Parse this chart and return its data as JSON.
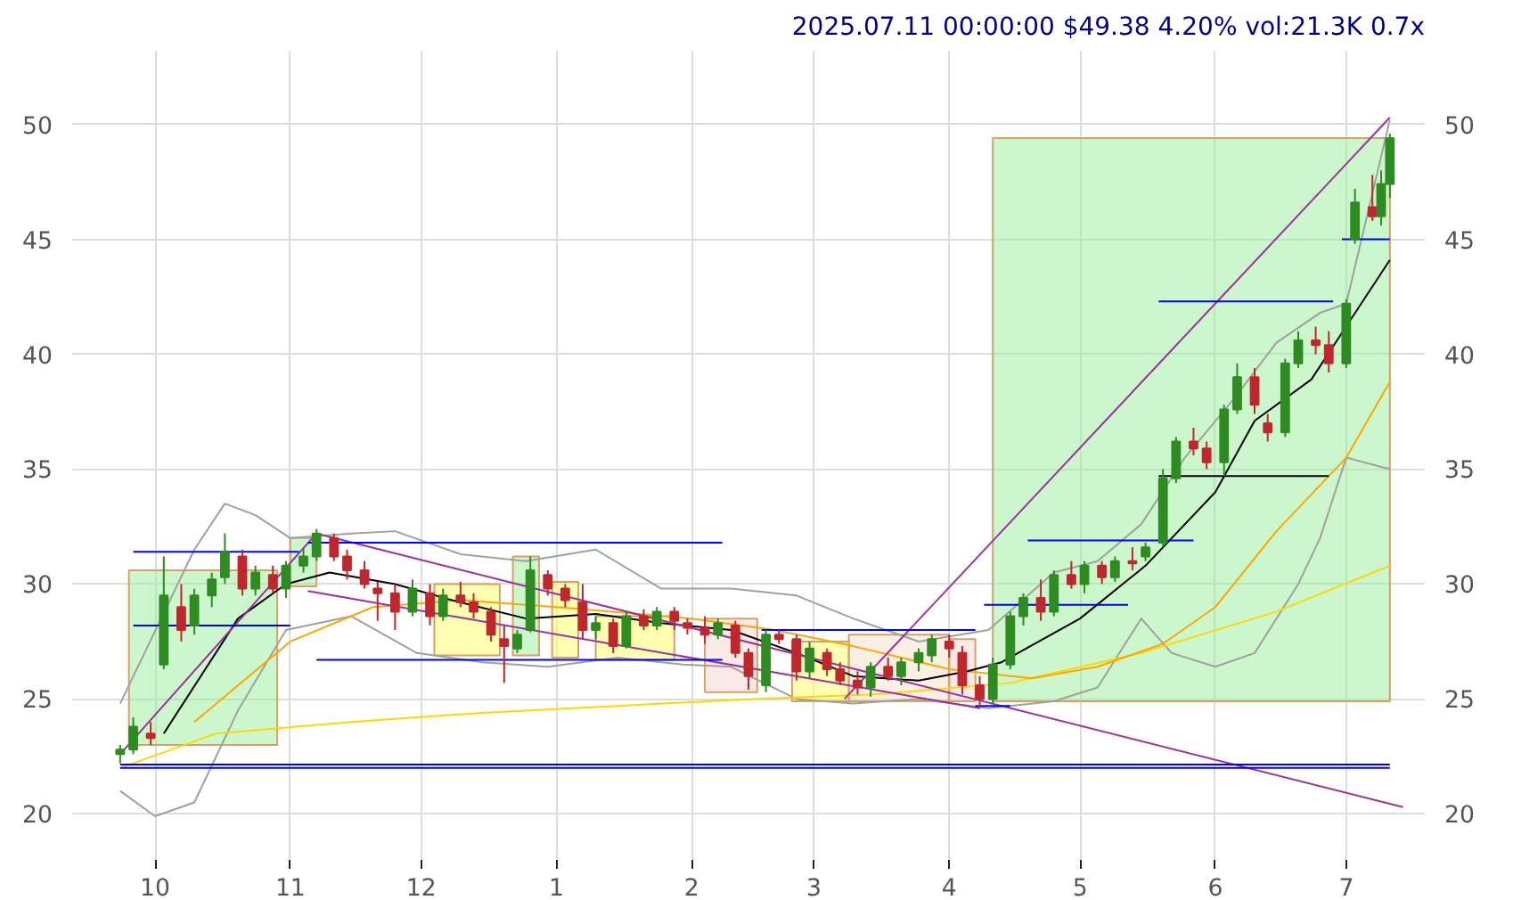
{
  "chart_data": {
    "type": "candlestick",
    "title": "2025.07.11 00:00:00 $49.38 4.20% vol:21.3K 0.7x",
    "x": [
      "2024-09-23",
      "2024-09-26",
      "2024-09-30",
      "2024-10-03",
      "2024-10-07",
      "2024-10-10",
      "2024-10-14",
      "2024-10-17",
      "2024-10-21",
      "2024-10-24",
      "2024-10-28",
      "2024-10-31",
      "2024-11-04",
      "2024-11-07",
      "2024-11-11",
      "2024-11-14",
      "2024-11-18",
      "2024-11-21",
      "2024-11-25",
      "2024-11-29",
      "2024-12-03",
      "2024-12-06",
      "2024-12-10",
      "2024-12-13",
      "2024-12-17",
      "2024-12-20",
      "2024-12-23",
      "2024-12-26",
      "2024-12-30",
      "2025-01-03",
      "2025-01-07",
      "2025-01-10",
      "2025-01-14",
      "2025-01-17",
      "2025-01-21",
      "2025-01-24",
      "2025-01-28",
      "2025-01-31",
      "2025-02-04",
      "2025-02-07",
      "2025-02-11",
      "2025-02-14",
      "2025-02-18",
      "2025-02-21",
      "2025-02-25",
      "2025-02-28",
      "2025-03-04",
      "2025-03-07",
      "2025-03-11",
      "2025-03-14",
      "2025-03-18",
      "2025-03-21",
      "2025-03-25",
      "2025-03-28",
      "2025-04-01",
      "2025-04-04",
      "2025-04-08",
      "2025-04-11",
      "2025-04-15",
      "2025-04-18",
      "2025-04-22",
      "2025-04-25",
      "2025-04-29",
      "2025-05-02",
      "2025-05-06",
      "2025-05-09",
      "2025-05-13",
      "2025-05-16",
      "2025-05-20",
      "2025-05-23",
      "2025-05-27",
      "2025-05-30",
      "2025-06-03",
      "2025-06-06",
      "2025-06-10",
      "2025-06-13",
      "2025-06-17",
      "2025-06-20",
      "2025-06-24",
      "2025-06-27",
      "2025-07-01",
      "2025-07-03",
      "2025-07-07",
      "2025-07-09",
      "2025-07-11"
    ],
    "ohlc": [
      [
        22.6,
        23.0,
        22.2,
        22.8
      ],
      [
        22.8,
        24.2,
        22.6,
        23.8
      ],
      [
        23.5,
        24.0,
        23.0,
        23.3
      ],
      [
        26.5,
        31.2,
        26.3,
        29.5
      ],
      [
        29.0,
        30.0,
        27.5,
        28.0
      ],
      [
        28.2,
        29.8,
        27.8,
        29.5
      ],
      [
        29.5,
        30.5,
        29.0,
        30.2
      ],
      [
        30.3,
        32.2,
        30.0,
        31.4
      ],
      [
        31.2,
        31.5,
        29.5,
        29.8
      ],
      [
        29.8,
        30.8,
        29.5,
        30.5
      ],
      [
        30.4,
        30.8,
        29.6,
        29.8
      ],
      [
        29.8,
        31.0,
        29.4,
        30.8
      ],
      [
        30.8,
        31.6,
        30.5,
        31.2
      ],
      [
        31.2,
        32.4,
        31.0,
        32.2
      ],
      [
        32.0,
        32.2,
        31.0,
        31.2
      ],
      [
        31.2,
        31.5,
        30.2,
        30.6
      ],
      [
        30.6,
        31.0,
        29.8,
        30.0
      ],
      [
        29.8,
        30.1,
        28.4,
        29.6
      ],
      [
        29.6,
        30.0,
        28.0,
        28.8
      ],
      [
        28.8,
        30.2,
        28.6,
        29.8
      ],
      [
        29.6,
        30.0,
        28.2,
        28.6
      ],
      [
        28.6,
        29.8,
        28.4,
        29.5
      ],
      [
        29.5,
        30.1,
        29.0,
        29.2
      ],
      [
        29.2,
        29.6,
        28.5,
        28.8
      ],
      [
        28.8,
        29.0,
        27.5,
        27.8
      ],
      [
        27.6,
        28.2,
        25.7,
        27.3
      ],
      [
        27.2,
        28.0,
        27.0,
        27.8
      ],
      [
        28.0,
        31.2,
        27.9,
        30.6
      ],
      [
        30.4,
        30.6,
        29.5,
        29.8
      ],
      [
        29.8,
        30.0,
        29.0,
        29.3
      ],
      [
        29.2,
        30.0,
        27.6,
        28.0
      ],
      [
        28.0,
        28.6,
        27.6,
        28.3
      ],
      [
        28.3,
        28.5,
        27.0,
        27.3
      ],
      [
        27.3,
        28.8,
        27.2,
        28.6
      ],
      [
        28.6,
        28.9,
        28.0,
        28.2
      ],
      [
        28.2,
        29.0,
        28.0,
        28.8
      ],
      [
        28.8,
        29.0,
        28.0,
        28.4
      ],
      [
        28.3,
        28.5,
        27.8,
        28.1
      ],
      [
        28.1,
        28.6,
        27.4,
        27.8
      ],
      [
        27.8,
        28.5,
        27.6,
        28.3
      ],
      [
        28.2,
        28.4,
        26.8,
        27.0
      ],
      [
        27.0,
        27.2,
        25.4,
        26.0
      ],
      [
        25.6,
        28.0,
        25.3,
        27.8
      ],
      [
        27.8,
        28.0,
        27.4,
        27.6
      ],
      [
        27.6,
        27.8,
        25.8,
        26.2
      ],
      [
        26.2,
        27.5,
        25.9,
        27.2
      ],
      [
        27.0,
        27.2,
        26.0,
        26.3
      ],
      [
        26.3,
        26.6,
        25.6,
        25.8
      ],
      [
        25.8,
        26.2,
        25.2,
        25.5
      ],
      [
        25.5,
        26.6,
        25.1,
        26.4
      ],
      [
        26.4,
        26.8,
        25.8,
        26.0
      ],
      [
        26.0,
        26.8,
        25.6,
        26.6
      ],
      [
        26.6,
        27.2,
        26.2,
        27.0
      ],
      [
        26.9,
        27.8,
        26.6,
        27.6
      ],
      [
        27.5,
        27.8,
        26.8,
        27.2
      ],
      [
        27.0,
        27.3,
        25.2,
        25.6
      ],
      [
        25.6,
        26.0,
        24.6,
        25.0
      ],
      [
        25.0,
        26.8,
        24.8,
        26.5
      ],
      [
        26.5,
        28.8,
        26.3,
        28.6
      ],
      [
        28.6,
        29.6,
        28.2,
        29.4
      ],
      [
        29.4,
        30.2,
        28.4,
        28.8
      ],
      [
        28.8,
        30.6,
        28.6,
        30.4
      ],
      [
        30.4,
        31.0,
        29.8,
        30.0
      ],
      [
        30.0,
        31.0,
        29.6,
        30.8
      ],
      [
        30.8,
        31.0,
        30.0,
        30.3
      ],
      [
        30.3,
        31.2,
        30.1,
        31.0
      ],
      [
        31.0,
        31.6,
        30.6,
        30.9
      ],
      [
        31.2,
        31.8,
        31.0,
        31.6
      ],
      [
        31.8,
        35.0,
        31.6,
        34.6
      ],
      [
        34.6,
        36.4,
        34.4,
        36.2
      ],
      [
        36.2,
        36.8,
        35.6,
        35.9
      ],
      [
        35.9,
        36.2,
        35.0,
        35.3
      ],
      [
        35.3,
        37.8,
        34.7,
        37.6
      ],
      [
        37.6,
        39.6,
        37.4,
        39.0
      ],
      [
        39.0,
        39.4,
        37.4,
        37.8
      ],
      [
        37.0,
        37.4,
        36.2,
        36.6
      ],
      [
        36.6,
        39.8,
        36.4,
        39.6
      ],
      [
        39.6,
        41.0,
        39.4,
        40.6
      ],
      [
        40.6,
        41.2,
        40.0,
        40.4
      ],
      [
        40.4,
        41.0,
        39.2,
        39.6
      ],
      [
        39.6,
        42.4,
        39.4,
        42.2
      ],
      [
        45.0,
        47.2,
        44.8,
        46.6
      ],
      [
        46.4,
        47.8,
        45.8,
        46.0
      ],
      [
        46.0,
        48.0,
        45.6,
        47.4
      ],
      [
        47.4,
        49.6,
        46.8,
        49.4
      ]
    ],
    "series": [
      {
        "type": "area",
        "color": "#99f099",
        "x": [
          "2024-09-25",
          "2024-10-29",
          "2024-10-29",
          "2024-09-25"
        ],
        "values": [
          30.6,
          30.6,
          23.0,
          23.0
        ]
      },
      {
        "type": "area",
        "color": "#99f099",
        "x": [
          "2024-11-01",
          "2024-11-07",
          "2024-11-07",
          "2024-11-01"
        ],
        "values": [
          32.0,
          32.0,
          29.9,
          29.9
        ]
      },
      {
        "type": "area",
        "color": "#ffff66",
        "x": [
          "2024-12-04",
          "2024-12-19",
          "2024-12-19",
          "2024-12-04"
        ],
        "values": [
          30.0,
          30.0,
          26.9,
          26.9
        ]
      },
      {
        "type": "area",
        "color": "#99f099",
        "x": [
          "2024-12-22",
          "2024-12-28",
          "2024-12-28",
          "2024-12-22"
        ],
        "values": [
          31.2,
          31.2,
          26.9,
          26.9
        ]
      },
      {
        "type": "area",
        "color": "#ffff66",
        "x": [
          "2024-12-31",
          "2025-01-06",
          "2025-01-06",
          "2024-12-31"
        ],
        "values": [
          30.1,
          30.1,
          26.8,
          26.8
        ]
      },
      {
        "type": "area",
        "color": "#ffff66",
        "x": [
          "2025-01-10",
          "2025-01-28",
          "2025-01-28",
          "2025-01-10"
        ],
        "values": [
          28.6,
          28.6,
          26.7,
          26.7
        ]
      },
      {
        "type": "area",
        "color": "#f5d5d0",
        "x": [
          "2025-02-04",
          "2025-02-16",
          "2025-02-16",
          "2025-02-04"
        ],
        "values": [
          28.5,
          28.5,
          25.3,
          25.3
        ]
      },
      {
        "type": "area",
        "color": "#ffff66",
        "x": [
          "2025-02-24",
          "2025-03-09",
          "2025-03-09",
          "2025-02-24"
        ],
        "values": [
          27.5,
          27.5,
          24.9,
          24.9
        ]
      },
      {
        "type": "area",
        "color": "#f5e0c8",
        "x": [
          "2025-03-09",
          "2025-04-01",
          "2025-04-01",
          "2025-03-09"
        ],
        "values": [
          27.8,
          27.8,
          24.9,
          24.9
        ]
      },
      {
        "type": "area",
        "color": "#f5d5d0",
        "x": [
          "2025-04-01",
          "2025-04-07",
          "2025-04-07",
          "2025-04-01"
        ],
        "values": [
          27.6,
          27.6,
          24.9,
          24.9
        ]
      },
      {
        "type": "area",
        "color": "#99f099",
        "x": [
          "2025-04-11",
          "2025-07-11",
          "2025-07-11",
          "2025-04-11"
        ],
        "values": [
          49.4,
          49.4,
          24.9,
          24.9
        ]
      },
      {
        "type": "line",
        "color": "#a0a0a0",
        "x": [
          "2024-09-23",
          "2024-10-10",
          "2024-10-17",
          "2024-10-24",
          "2024-11-01",
          "2024-11-15",
          "2024-11-25",
          "2024-12-10",
          "2024-12-25",
          "2025-01-10",
          "2025-01-25",
          "2025-02-10",
          "2025-02-25",
          "2025-03-10",
          "2025-03-25",
          "2025-04-10",
          "2025-04-25",
          "2025-05-05",
          "2025-05-15",
          "2025-05-25",
          "2025-06-05",
          "2025-06-15",
          "2025-06-25",
          "2025-07-01",
          "2025-07-11"
        ],
        "values": [
          24.8,
          31.5,
          33.5,
          33.0,
          32.0,
          32.2,
          32.3,
          31.3,
          31.0,
          31.5,
          29.8,
          29.8,
          29.5,
          28.5,
          27.5,
          28.0,
          30.5,
          31.0,
          32.6,
          35.5,
          38.0,
          40.5,
          41.8,
          42.2,
          50.2
        ]
      },
      {
        "type": "line",
        "color": "#a0a0a0",
        "x": [
          "2024-09-23",
          "2024-10-01",
          "2024-10-10",
          "2024-10-20",
          "2024-10-31",
          "2024-11-15",
          "2024-11-30",
          "2024-12-15",
          "2024-12-30",
          "2025-01-15",
          "2025-01-30",
          "2025-02-10",
          "2025-02-25",
          "2025-03-10",
          "2025-03-25",
          "2025-04-10",
          "2025-04-25",
          "2025-05-05",
          "2025-05-15",
          "2025-05-22",
          "2025-06-01",
          "2025-06-10",
          "2025-06-20",
          "2025-06-25",
          "2025-07-01",
          "2025-07-11"
        ],
        "values": [
          21.0,
          19.9,
          20.5,
          24.5,
          28.0,
          28.6,
          27.0,
          26.6,
          26.4,
          26.8,
          26.5,
          26.4,
          25.0,
          24.8,
          25.0,
          24.6,
          24.9,
          25.5,
          28.5,
          27.0,
          26.4,
          27.0,
          30.0,
          32.0,
          35.5,
          35.0
        ]
      },
      {
        "type": "line",
        "color": "#ffd700",
        "x": [
          "2024-09-23",
          "2024-10-15",
          "2024-11-15",
          "2024-12-15",
          "2025-01-15",
          "2025-02-15",
          "2025-03-15",
          "2025-04-15",
          "2025-05-15",
          "2025-06-15",
          "2025-07-11"
        ],
        "values": [
          22.0,
          23.5,
          24.0,
          24.4,
          24.7,
          25.0,
          25.2,
          25.7,
          27.0,
          28.8,
          30.8
        ]
      },
      {
        "type": "line",
        "color": "#ffa500",
        "x": [
          "2024-10-10",
          "2024-11-01",
          "2024-11-20",
          "2024-12-10",
          "2025-01-01",
          "2025-02-01",
          "2025-02-20",
          "2025-03-10",
          "2025-04-01",
          "2025-04-20",
          "2025-05-05",
          "2025-05-20",
          "2025-06-01",
          "2025-06-15",
          "2025-07-01",
          "2025-07-11"
        ],
        "values": [
          24.0,
          27.5,
          29.0,
          29.3,
          29.0,
          28.5,
          28.0,
          27.3,
          26.3,
          25.9,
          26.4,
          27.4,
          29.0,
          32.3,
          35.5,
          38.8
        ]
      },
      {
        "type": "line",
        "color": "#000000",
        "x": [
          "2024-10-03",
          "2024-10-20",
          "2024-10-31",
          "2024-11-10",
          "2024-11-25",
          "2024-12-10",
          "2024-12-25",
          "2025-01-10",
          "2025-01-25",
          "2025-02-10",
          "2025-02-25",
          "2025-03-10",
          "2025-03-25",
          "2025-04-05",
          "2025-04-13",
          "2025-05-01",
          "2025-05-16",
          "2025-06-01",
          "2025-06-10",
          "2025-06-23",
          "2025-07-11"
        ],
        "values": [
          23.5,
          28.5,
          30.0,
          30.5,
          30.0,
          29.2,
          28.5,
          28.7,
          28.3,
          28.0,
          27.0,
          26.0,
          25.8,
          26.2,
          26.6,
          28.5,
          30.8,
          34.0,
          37.1,
          38.9,
          44.1
        ]
      },
      {
        "type": "line",
        "color": "#9b30a0",
        "x": [
          "2024-09-23",
          "2024-11-07",
          "2025-07-14"
        ],
        "values": [
          22.6,
          32.2,
          20.3
        ]
      },
      {
        "type": "line",
        "color": "#9b30a0",
        "x": [
          "2024-11-05",
          "2025-04-08"
        ],
        "values": [
          29.7,
          24.6
        ]
      },
      {
        "type": "line",
        "color": "#9b30a0",
        "x": [
          "2025-03-08",
          "2025-07-11"
        ],
        "values": [
          25.0,
          50.3
        ]
      },
      {
        "type": "line",
        "color": "#0000ff",
        "x": [
          "2024-09-26",
          "2024-11-03"
        ],
        "values": [
          31.4,
          31.4
        ]
      },
      {
        "type": "line",
        "color": "#0000ff",
        "x": [
          "2024-09-26",
          "2024-11-01"
        ],
        "values": [
          28.2,
          28.2
        ]
      },
      {
        "type": "line",
        "color": "#0000ff",
        "x": [
          "2024-11-05",
          "2025-02-08"
        ],
        "values": [
          31.8,
          31.8
        ]
      },
      {
        "type": "line",
        "color": "#0000ff",
        "x": [
          "2024-11-07",
          "2025-02-08"
        ],
        "values": [
          26.7,
          26.7
        ]
      },
      {
        "type": "line",
        "color": "#0000ff",
        "x": [
          "2025-02-17",
          "2025-04-07"
        ],
        "values": [
          28.0,
          28.0
        ]
      },
      {
        "type": "line",
        "color": "#0000ff",
        "x": [
          "2025-04-07",
          "2025-04-15"
        ],
        "values": [
          24.7,
          24.7
        ]
      },
      {
        "type": "line",
        "color": "#0000ff",
        "x": [
          "2025-04-09",
          "2025-05-12"
        ],
        "values": [
          29.1,
          29.1
        ]
      },
      {
        "type": "line",
        "color": "#0000ff",
        "x": [
          "2025-04-19",
          "2025-05-27"
        ],
        "values": [
          31.9,
          31.9
        ]
      },
      {
        "type": "line",
        "color": "#0000ff",
        "x": [
          "2025-05-19",
          "2025-06-28"
        ],
        "values": [
          42.3,
          42.3
        ]
      },
      {
        "type": "line",
        "color": "#000000",
        "x": [
          "2025-05-19",
          "2025-06-27"
        ],
        "values": [
          34.7,
          34.7
        ]
      },
      {
        "type": "line",
        "color": "#0000ff",
        "x": [
          "2025-06-30",
          "2025-07-11"
        ],
        "values": [
          45.0,
          45.0
        ]
      },
      {
        "type": "line",
        "color": "#0000ff",
        "x": [
          "2024-09-23",
          "2025-07-11"
        ],
        "values": [
          22.0,
          22.0
        ]
      },
      {
        "type": "line",
        "color": "#0000ff",
        "x": [
          "2024-09-23",
          "2025-07-11"
        ],
        "values": [
          22.15,
          22.15
        ]
      }
    ],
    "xlim": [
      "2024-09-12",
      "2025-07-19"
    ],
    "xticks": [
      {
        "value": "2024-10-01",
        "label": "10"
      },
      {
        "value": "2024-11-01",
        "label": "11"
      },
      {
        "value": "2024-12-01",
        "label": "12"
      },
      {
        "value": "2025-01-01",
        "label": "1"
      },
      {
        "value": "2025-02-01",
        "label": "2"
      },
      {
        "value": "2025-03-01",
        "label": "3"
      },
      {
        "value": "2025-04-01",
        "label": "4"
      },
      {
        "value": "2025-05-01",
        "label": "5"
      },
      {
        "value": "2025-06-01",
        "label": "6"
      },
      {
        "value": "2025-07-01",
        "label": "7"
      }
    ],
    "ylim": [
      18,
      53.2
    ],
    "yticks": [
      20,
      25,
      30,
      35,
      40,
      45,
      50
    ],
    "y2lim": [
      18,
      53.2
    ],
    "y2ticks": [
      20,
      25,
      30,
      35,
      40,
      45,
      50
    ],
    "grid": true
  }
}
